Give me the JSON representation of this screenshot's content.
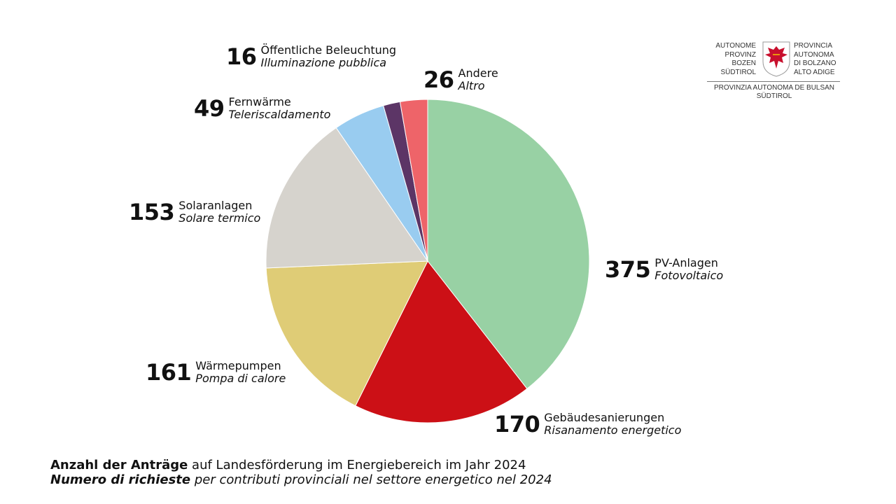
{
  "chart_data": {
    "type": "pie",
    "start": "top, clockwise",
    "slices": [
      {
        "value": 375,
        "label_de": "PV-Anlagen",
        "label_it": "Fotovoltaico",
        "color": "#98d1a4"
      },
      {
        "value": 170,
        "label_de": "Gebäudesanierungen",
        "label_it": "Risanamento energetico",
        "color": "#cc1016"
      },
      {
        "value": 161,
        "label_de": "Wärmepumpen",
        "label_it": "Pompa di calore",
        "color": "#dfcc76"
      },
      {
        "value": 153,
        "label_de": "Solaranlagen",
        "label_it": "Solare termico",
        "color": "#d6d3cd"
      },
      {
        "value": 49,
        "label_de": "Fernwärme",
        "label_it": "Teleriscaldamento",
        "color": "#99ccf0"
      },
      {
        "value": 16,
        "label_de": "Öffentliche Beleuchtung",
        "label_it": "Illuminazione pubblica",
        "color": "#5c3566"
      },
      {
        "value": 26,
        "label_de": "Andere",
        "label_it": "Altro",
        "color": "#ee6469"
      }
    ]
  },
  "caption": {
    "de_bold": "Anzahl der Anträge",
    "de_rest": " auf Landesförderung im Energiebereich im Jahr 2024",
    "it_bold": "Numero di richieste",
    "it_rest": " per contributi provinciali nel settore energetico nel 2024"
  },
  "logo": {
    "left_lines": [
      "AUTONOME",
      "PROVINZ",
      "BOZEN",
      "SÜDTIROL"
    ],
    "right_lines": [
      "PROVINCIA",
      "AUTONOMA",
      "DI BOLZANO",
      "ALTO ADIGE"
    ],
    "bottom_lines": [
      "PROVINZIA AUTONOMA DE BULSAN",
      "SÜDTIROL"
    ]
  }
}
